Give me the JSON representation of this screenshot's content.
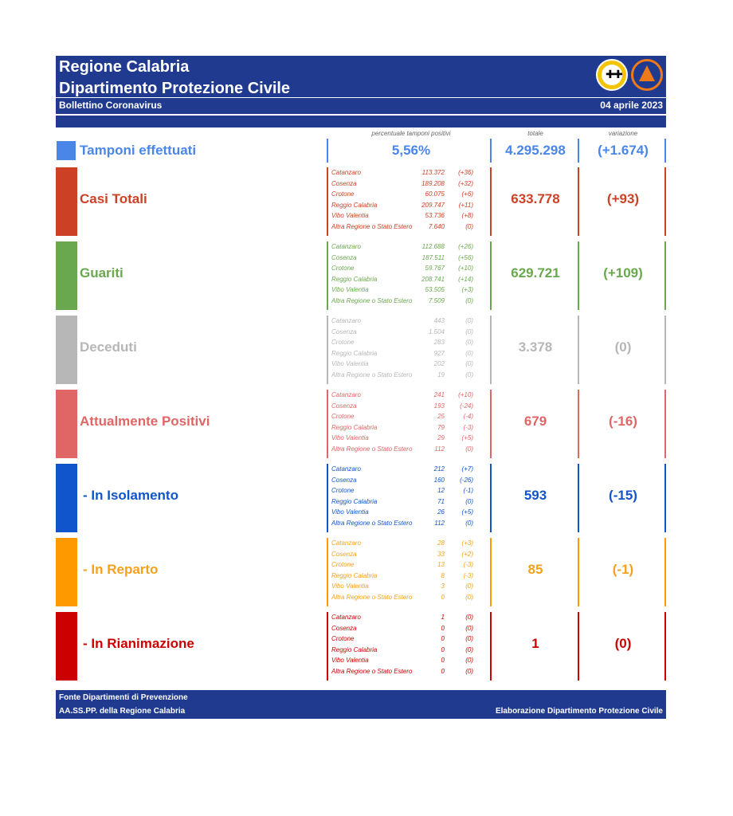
{
  "header": {
    "title_line1": "Regione Calabria",
    "title_line2": "Dipartimento Protezione Civile",
    "subtitle": "Bollettino Coronavirus",
    "date": "04 aprile 2023"
  },
  "columns": {
    "pct_label": "percentuale tamponi positivi",
    "total_label": "totale",
    "variation_label": "variazione"
  },
  "tamponi": {
    "label": "Tamponi effettuati",
    "pct": "5,56%",
    "total": "4.295.298",
    "variation": "(+1.674)",
    "color": "#4a86e8"
  },
  "blocks": [
    {
      "label": "Casi Totali",
      "color": "#cc4125",
      "text_color": "#cc4125",
      "indent": false,
      "total": "633.778",
      "variation": "(+93)",
      "provinces": [
        {
          "name": "Catanzaro",
          "value": "113.372",
          "delta": "(+36)"
        },
        {
          "name": "Cosenza",
          "value": "189.208",
          "delta": "(+32)"
        },
        {
          "name": "Crotone",
          "value": "60.075",
          "delta": "(+6)"
        },
        {
          "name": "Reggio Calabria",
          "value": "209.747",
          "delta": "(+11)"
        },
        {
          "name": "Vibo Valentia",
          "value": "53.736",
          "delta": "(+8)"
        },
        {
          "name": "Altra Regione o Stato Estero",
          "value": "7.640",
          "delta": "(0)"
        }
      ]
    },
    {
      "label": "Guariti",
      "color": "#6aa84f",
      "text_color": "#6aa84f",
      "indent": false,
      "total": "629.721",
      "variation": "(+109)",
      "provinces": [
        {
          "name": "Catanzaro",
          "value": "112.688",
          "delta": "(+26)"
        },
        {
          "name": "Cosenza",
          "value": "187.511",
          "delta": "(+56)"
        },
        {
          "name": "Crotone",
          "value": "59.767",
          "delta": "(+10)"
        },
        {
          "name": "Reggio Calabria",
          "value": "208.741",
          "delta": "(+14)"
        },
        {
          "name": "Vibo Valentia",
          "value": "53.505",
          "delta": "(+3)"
        },
        {
          "name": "Altra Regione o Stato Estero",
          "value": "7.509",
          "delta": "(0)"
        }
      ]
    },
    {
      "label": "Deceduti",
      "color": "#b7b7b7",
      "text_color": "#b7b7b7",
      "indent": false,
      "total": "3.378",
      "variation": "(0)",
      "provinces": [
        {
          "name": "Catanzaro",
          "value": "443",
          "delta": "(0)"
        },
        {
          "name": "Cosenza",
          "value": "1.504",
          "delta": "(0)"
        },
        {
          "name": "Crotone",
          "value": "283",
          "delta": "(0)"
        },
        {
          "name": "Reggio Calabria",
          "value": "927",
          "delta": "(0)"
        },
        {
          "name": "Vibo Valentia",
          "value": "202",
          "delta": "(0)"
        },
        {
          "name": "Altra Regione o Stato Estero",
          "value": "19",
          "delta": "(0)"
        }
      ]
    },
    {
      "label": "Attualmente Positivi",
      "color": "#e06666",
      "text_color": "#e06666",
      "indent": false,
      "total": "679",
      "variation": "(-16)",
      "provinces": [
        {
          "name": "Catanzaro",
          "value": "241",
          "delta": "(+10)"
        },
        {
          "name": "Cosenza",
          "value": "193",
          "delta": "(-24)"
        },
        {
          "name": "Crotone",
          "value": "25",
          "delta": "(-4)"
        },
        {
          "name": "Reggio Calabria",
          "value": "79",
          "delta": "(-3)"
        },
        {
          "name": "Vibo Valentia",
          "value": "29",
          "delta": "(+5)"
        },
        {
          "name": "Altra Regione o Stato Estero",
          "value": "112",
          "delta": "(0)"
        }
      ]
    },
    {
      "label": "- In Isolamento",
      "color": "#1155cc",
      "text_color": "#1155cc",
      "indent": true,
      "total": "593",
      "variation": "(-15)",
      "provinces": [
        {
          "name": "Catanzaro",
          "value": "212",
          "delta": "(+7)"
        },
        {
          "name": "Cosenza",
          "value": "160",
          "delta": "(-26)"
        },
        {
          "name": "Crotone",
          "value": "12",
          "delta": "(-1)"
        },
        {
          "name": "Reggio Calabria",
          "value": "71",
          "delta": "(0)"
        },
        {
          "name": "Vibo Valentia",
          "value": "26",
          "delta": "(+5)"
        },
        {
          "name": "Altra Regione o Stato Estero",
          "value": "112",
          "delta": "(0)"
        }
      ]
    },
    {
      "label": "- In Reparto",
      "color": "#ff9900",
      "text_color": "#f6a11a",
      "indent": true,
      "total": "85",
      "variation": "(-1)",
      "provinces": [
        {
          "name": "Catanzaro",
          "value": "28",
          "delta": "(+3)"
        },
        {
          "name": "Cosenza",
          "value": "33",
          "delta": "(+2)"
        },
        {
          "name": "Crotone",
          "value": "13",
          "delta": "(-3)"
        },
        {
          "name": "Reggio Calabria",
          "value": "8",
          "delta": "(-3)"
        },
        {
          "name": "Vibo Valentia",
          "value": "3",
          "delta": "(0)"
        },
        {
          "name": "Altra Regione o Stato Estero",
          "value": "0",
          "delta": "(0)"
        }
      ]
    },
    {
      "label": "- In Rianimazione",
      "color": "#cc0000",
      "text_color": "#cc0000",
      "indent": true,
      "total": "1",
      "variation": "(0)",
      "provinces": [
        {
          "name": "Catanzaro",
          "value": "1",
          "delta": "(0)"
        },
        {
          "name": "Cosenza",
          "value": "0",
          "delta": "(0)"
        },
        {
          "name": "Crotone",
          "value": "0",
          "delta": "(0)"
        },
        {
          "name": "Reggio Calabria",
          "value": "0",
          "delta": "(0)"
        },
        {
          "name": "Vibo Valentia",
          "value": "0",
          "delta": "(0)"
        },
        {
          "name": "Altra Regione o Stato Estero",
          "value": "0",
          "delta": "(0)"
        }
      ]
    }
  ],
  "footer": {
    "source_line1": "Fonte Dipartimenti di Prevenzione",
    "source_line2": "AA.SS.PP.  della Regione Calabria",
    "credit": "Elaborazione Dipartimento Protezione Civile"
  }
}
